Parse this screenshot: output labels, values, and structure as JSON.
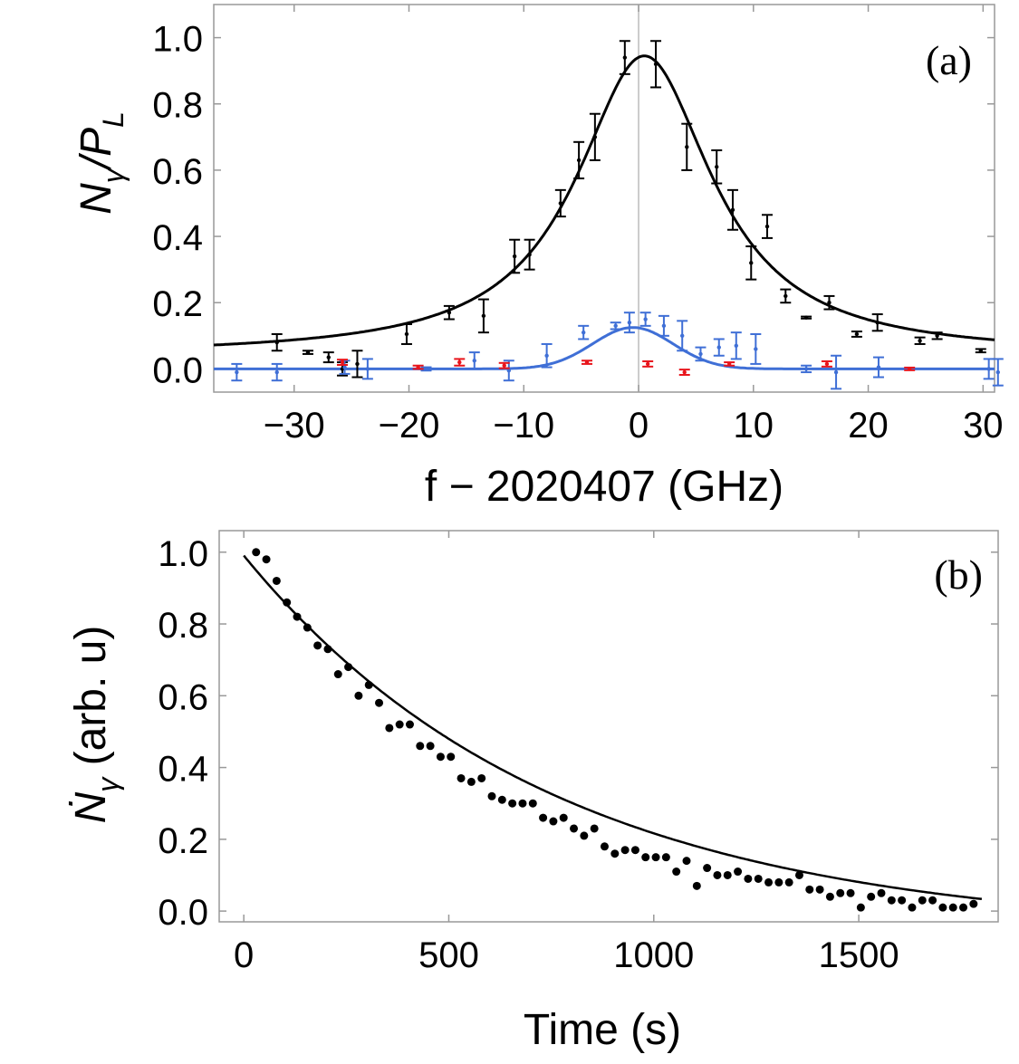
{
  "chart_data": [
    {
      "panel": "a",
      "type": "scatter",
      "panel_label": "(a)",
      "xlabel": "f − 2020407 (GHz)",
      "ylabel_main": "N",
      "ylabel_sub": "γ",
      "ylabel_div": "/P",
      "ylabel_sub2": "L",
      "xlim": [
        -37,
        31
      ],
      "ylim": [
        -0.07,
        1.1
      ],
      "xticks": [
        -30,
        -20,
        -10,
        0,
        10,
        20,
        30
      ],
      "xtick_labels": [
        "−30",
        "−20",
        "−10",
        "0",
        "10",
        "20",
        "30"
      ],
      "yticks": [
        0.0,
        0.2,
        0.4,
        0.6,
        0.8,
        1.0
      ],
      "ytick_labels": [
        "0.0",
        "0.2",
        "0.4",
        "0.6",
        "0.8",
        "1.0"
      ],
      "vertical_line_at": 0,
      "series": [
        {
          "name": "black data",
          "color": "#000000",
          "fit": {
            "model": "lorentzian",
            "amplitude": 0.905,
            "center": 0.5,
            "half_width": 7.2,
            "offset": 0.04
          },
          "points": [
            {
              "x": -31.5,
              "y": 0.08,
              "err": 0.025
            },
            {
              "x": -28.8,
              "y": 0.05,
              "err": 0.005
            },
            {
              "x": -27.0,
              "y": 0.035,
              "err": 0.015
            },
            {
              "x": -25.8,
              "y": 0.0,
              "err": 0.02
            },
            {
              "x": -24.5,
              "y": 0.015,
              "err": 0.04
            },
            {
              "x": -20.2,
              "y": 0.105,
              "err": 0.03
            },
            {
              "x": -16.5,
              "y": 0.17,
              "err": 0.02
            },
            {
              "x": -13.5,
              "y": 0.16,
              "err": 0.05
            },
            {
              "x": -10.8,
              "y": 0.34,
              "err": 0.05
            },
            {
              "x": -9.5,
              "y": 0.345,
              "err": 0.045
            },
            {
              "x": -6.8,
              "y": 0.5,
              "err": 0.04
            },
            {
              "x": -5.2,
              "y": 0.63,
              "err": 0.055
            },
            {
              "x": -3.8,
              "y": 0.7,
              "err": 0.07
            },
            {
              "x": -1.2,
              "y": 0.94,
              "err": 0.05
            },
            {
              "x": 1.5,
              "y": 0.92,
              "err": 0.07
            },
            {
              "x": 4.2,
              "y": 0.67,
              "err": 0.07
            },
            {
              "x": 6.8,
              "y": 0.61,
              "err": 0.05
            },
            {
              "x": 8.2,
              "y": 0.48,
              "err": 0.06
            },
            {
              "x": 9.8,
              "y": 0.32,
              "err": 0.05
            },
            {
              "x": 11.2,
              "y": 0.43,
              "err": 0.035
            },
            {
              "x": 12.8,
              "y": 0.22,
              "err": 0.02
            },
            {
              "x": 14.6,
              "y": 0.155,
              "err": 0.003
            },
            {
              "x": 16.6,
              "y": 0.2,
              "err": 0.02
            },
            {
              "x": 19.0,
              "y": 0.105,
              "err": 0.008
            },
            {
              "x": 20.8,
              "y": 0.14,
              "err": 0.025
            },
            {
              "x": 24.5,
              "y": 0.085,
              "err": 0.01
            },
            {
              "x": 26.0,
              "y": 0.1,
              "err": 0.01
            },
            {
              "x": 29.8,
              "y": 0.055,
              "err": 0.005
            }
          ]
        },
        {
          "name": "blue data",
          "color": "#3f6fd6",
          "fit": {
            "model": "gaussian",
            "amplitude": 0.125,
            "center": -0.5,
            "sigma": 3.5,
            "offset": 0.0
          },
          "points": [
            {
              "x": -35.0,
              "y": -0.01,
              "err": 0.025
            },
            {
              "x": -31.5,
              "y": -0.01,
              "err": 0.025
            },
            {
              "x": -25.6,
              "y": 0.005,
              "err": 0.02
            },
            {
              "x": -23.6,
              "y": 0.0,
              "err": 0.03
            },
            {
              "x": -18.5,
              "y": 0.0,
              "err": 0.005
            },
            {
              "x": -14.3,
              "y": 0.025,
              "err": 0.025
            },
            {
              "x": -11.3,
              "y": -0.005,
              "err": 0.03
            },
            {
              "x": -8.0,
              "y": 0.04,
              "err": 0.035
            },
            {
              "x": -4.8,
              "y": 0.11,
              "err": 0.02
            },
            {
              "x": -2.0,
              "y": 0.13,
              "err": 0.01
            },
            {
              "x": -0.8,
              "y": 0.14,
              "err": 0.03
            },
            {
              "x": 0.6,
              "y": 0.15,
              "err": 0.02
            },
            {
              "x": 2.2,
              "y": 0.13,
              "err": 0.03
            },
            {
              "x": 3.8,
              "y": 0.1,
              "err": 0.045
            },
            {
              "x": 5.4,
              "y": 0.045,
              "err": 0.02
            },
            {
              "x": 7.0,
              "y": 0.065,
              "err": 0.025
            },
            {
              "x": 8.5,
              "y": 0.07,
              "err": 0.04
            },
            {
              "x": 10.2,
              "y": 0.06,
              "err": 0.045
            },
            {
              "x": 14.6,
              "y": 0.0,
              "err": 0.01
            },
            {
              "x": 17.2,
              "y": -0.01,
              "err": 0.05
            },
            {
              "x": 20.9,
              "y": 0.005,
              "err": 0.03
            },
            {
              "x": 30.5,
              "y": 0.0,
              "err": 0.03
            },
            {
              "x": 31.3,
              "y": -0.01,
              "err": 0.04
            }
          ]
        },
        {
          "name": "red data",
          "color": "#e8141b",
          "points": [
            {
              "x": -25.8,
              "y": 0.02,
              "err": 0.008
            },
            {
              "x": -19.2,
              "y": 0.005,
              "err": 0.005
            },
            {
              "x": -15.6,
              "y": 0.02,
              "err": 0.01
            },
            {
              "x": -11.7,
              "y": 0.01,
              "err": 0.008
            },
            {
              "x": -4.5,
              "y": 0.02,
              "err": 0.005
            },
            {
              "x": 0.8,
              "y": 0.015,
              "err": 0.008
            },
            {
              "x": 4.0,
              "y": -0.01,
              "err": 0.008
            },
            {
              "x": 7.9,
              "y": 0.015,
              "err": 0.005
            },
            {
              "x": 16.4,
              "y": 0.015,
              "err": 0.008
            },
            {
              "x": 23.6,
              "y": 0.0,
              "err": 0.004
            }
          ]
        }
      ]
    },
    {
      "panel": "b",
      "type": "scatter",
      "panel_label": "(b)",
      "xlabel": "Time (s)",
      "ylabel_main": "Ṅ",
      "ylabel_sub": "γ",
      "ylabel_tail": " (arb. u)",
      "xlim": [
        -60,
        1840
      ],
      "ylim": [
        -0.03,
        1.06
      ],
      "xticks": [
        0,
        500,
        1000,
        1500
      ],
      "xtick_labels": [
        "0",
        "500",
        "1000",
        "1500"
      ],
      "yticks": [
        0.0,
        0.2,
        0.4,
        0.6,
        0.8,
        1.0
      ],
      "ytick_labels": [
        "0.0",
        "0.2",
        "0.4",
        "0.6",
        "0.8",
        "1.0"
      ],
      "fit": {
        "model": "exponential_decay",
        "a": 1.054,
        "tau": 754.6,
        "offset": -0.0635,
        "x_end": 1800
      },
      "series": [
        {
          "name": "decay data",
          "color": "#000000",
          "x": [
            30,
            55,
            80,
            105,
            130,
            155,
            180,
            205,
            230,
            255,
            280,
            305,
            330,
            355,
            380,
            405,
            430,
            455,
            480,
            505,
            530,
            555,
            580,
            605,
            630,
            655,
            680,
            705,
            730,
            755,
            780,
            805,
            830,
            855,
            880,
            905,
            930,
            955,
            980,
            1005,
            1030,
            1055,
            1080,
            1105,
            1130,
            1155,
            1180,
            1205,
            1230,
            1255,
            1280,
            1305,
            1330,
            1355,
            1380,
            1405,
            1430,
            1455,
            1480,
            1505,
            1530,
            1555,
            1580,
            1605,
            1630,
            1655,
            1680,
            1705,
            1730,
            1755,
            1780
          ],
          "y": [
            1.0,
            0.98,
            0.92,
            0.86,
            0.82,
            0.79,
            0.74,
            0.73,
            0.66,
            0.68,
            0.6,
            0.63,
            0.58,
            0.51,
            0.52,
            0.52,
            0.46,
            0.46,
            0.43,
            0.43,
            0.37,
            0.36,
            0.37,
            0.32,
            0.31,
            0.3,
            0.3,
            0.3,
            0.26,
            0.25,
            0.26,
            0.23,
            0.21,
            0.23,
            0.18,
            0.16,
            0.17,
            0.17,
            0.15,
            0.15,
            0.15,
            0.11,
            0.14,
            0.07,
            0.12,
            0.1,
            0.1,
            0.11,
            0.09,
            0.09,
            0.08,
            0.08,
            0.08,
            0.1,
            0.06,
            0.06,
            0.04,
            0.05,
            0.05,
            0.01,
            0.04,
            0.05,
            0.03,
            0.03,
            0.01,
            0.03,
            0.03,
            0.01,
            0.01,
            0.01,
            0.02
          ]
        }
      ]
    }
  ]
}
